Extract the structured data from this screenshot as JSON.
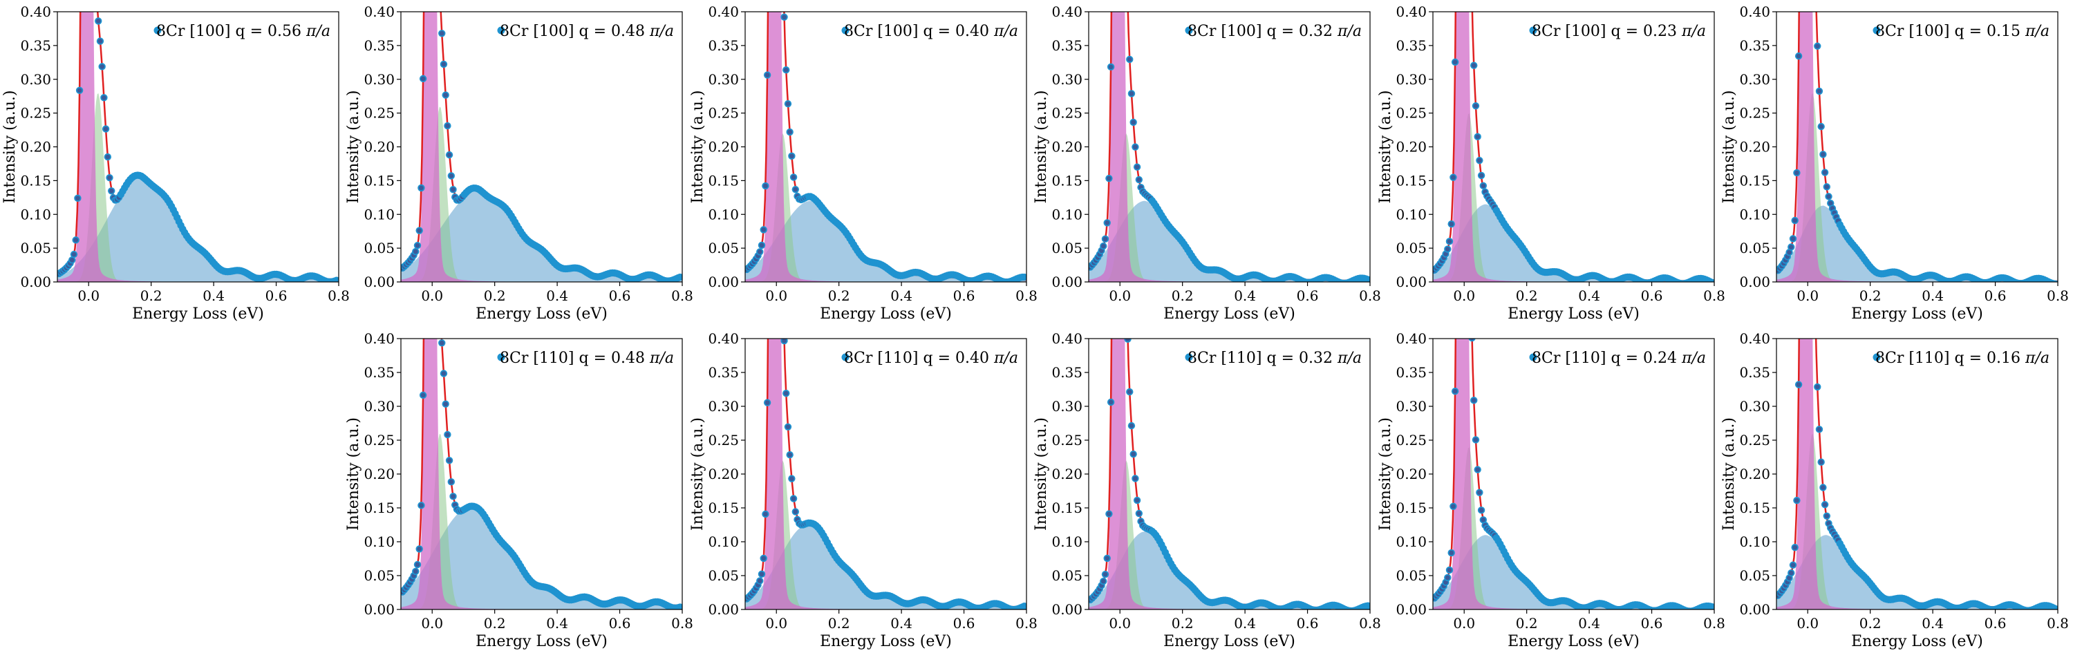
{
  "chart_data": [
    {
      "type": "scatter",
      "q": 0.56,
      "series": [
        {
          "name": "8Cr [100] q = 0.56 π/a",
          "label_main": "8Cr [100] q = 0.56 ",
          "label_italic": "π/a"
        }
      ],
      "xlabel": "Energy Loss (eV)",
      "ylabel": "Intensity (a.u.)",
      "xlim": [
        -0.1,
        0.8
      ],
      "ylim": [
        0,
        0.4
      ],
      "xticks": [
        "0.0",
        "0.2",
        "0.4",
        "0.6",
        "0.8"
      ],
      "yticks": [
        "0.00",
        "0.05",
        "0.10",
        "0.15",
        "0.20",
        "0.25",
        "0.30",
        "0.35",
        "0.40"
      ],
      "legend": "top-right",
      "grid": false,
      "components": {
        "zlp_center": -0.005,
        "zlp_width": 0.012,
        "zlp_amp": 1.6,
        "green_center": 0.03,
        "green_width": 0.02,
        "green_amp": 0.28,
        "blue_center": 0.17,
        "blue_width": 0.11,
        "blue_amp": 0.125,
        "tail_amp": 0.03,
        "tail_decay": 0.3,
        "lor_amp": 0.0027,
        "lor_gamma": 0.02
      }
    },
    {
      "type": "scatter",
      "q": 0.48,
      "series": [
        {
          "name": "8Cr [100] q = 0.48 π/a",
          "label_main": "8Cr [100] q = 0.48 ",
          "label_italic": "π/a"
        }
      ],
      "xlabel": "Energy Loss (eV)",
      "ylabel": "Intensity (a.u.)",
      "xlim": [
        -0.1,
        0.8
      ],
      "ylim": [
        0,
        0.4
      ],
      "xticks": [
        "0.0",
        "0.2",
        "0.4",
        "0.6",
        "0.8"
      ],
      "yticks": [
        "0.00",
        "0.05",
        "0.10",
        "0.15",
        "0.20",
        "0.25",
        "0.30",
        "0.35",
        "0.40"
      ],
      "legend": "top-right",
      "grid": false,
      "components": {
        "zlp_center": -0.005,
        "zlp_width": 0.012,
        "zlp_amp": 1.6,
        "green_center": 0.025,
        "green_width": 0.02,
        "green_amp": 0.26,
        "blue_center": 0.15,
        "blue_width": 0.12,
        "blue_amp": 0.1,
        "tail_amp": 0.035,
        "tail_decay": 0.32,
        "lor_amp": 0.0027,
        "lor_gamma": 0.02
      }
    },
    {
      "type": "scatter",
      "q": 0.4,
      "series": [
        {
          "name": "8Cr [100] q = 0.40 π/a",
          "label_main": "8Cr [100] q = 0.40 ",
          "label_italic": "π/a"
        }
      ],
      "xlabel": "Energy Loss (eV)",
      "ylabel": "Intensity (a.u.)",
      "xlim": [
        -0.1,
        0.8
      ],
      "ylim": [
        0,
        0.4
      ],
      "xticks": [
        "0.0",
        "0.2",
        "0.4",
        "0.6",
        "0.8"
      ],
      "yticks": [
        "0.00",
        "0.05",
        "0.10",
        "0.15",
        "0.20",
        "0.25",
        "0.30",
        "0.35",
        "0.40"
      ],
      "legend": "top-right",
      "grid": false,
      "components": {
        "zlp_center": -0.005,
        "zlp_width": 0.012,
        "zlp_amp": 1.6,
        "green_center": 0.02,
        "green_width": 0.02,
        "green_amp": 0.22,
        "blue_center": 0.11,
        "blue_width": 0.1,
        "blue_amp": 0.09,
        "tail_amp": 0.03,
        "tail_decay": 0.3,
        "lor_amp": 0.0027,
        "lor_gamma": 0.02
      }
    },
    {
      "type": "scatter",
      "q": 0.32,
      "series": [
        {
          "name": "8Cr [100] q = 0.32 π/a",
          "label_main": "8Cr [100] q = 0.32 ",
          "label_italic": "π/a"
        }
      ],
      "xlabel": "Energy Loss (eV)",
      "ylabel": "Intensity (a.u.)",
      "xlim": [
        -0.1,
        0.8
      ],
      "ylim": [
        0,
        0.4
      ],
      "xticks": [
        "0.0",
        "0.2",
        "0.4",
        "0.6",
        "0.8"
      ],
      "yticks": [
        "0.00",
        "0.05",
        "0.10",
        "0.15",
        "0.20",
        "0.25",
        "0.30",
        "0.35",
        "0.40"
      ],
      "legend": "top-right",
      "grid": false,
      "components": {
        "zlp_center": -0.005,
        "zlp_width": 0.012,
        "zlp_amp": 1.6,
        "green_center": 0.02,
        "green_width": 0.02,
        "green_amp": 0.22,
        "blue_center": 0.08,
        "blue_width": 0.09,
        "blue_amp": 0.095,
        "tail_amp": 0.025,
        "tail_decay": 0.25,
        "lor_amp": 0.0027,
        "lor_gamma": 0.02
      }
    },
    {
      "type": "scatter",
      "q": 0.23,
      "series": [
        {
          "name": "8Cr [100] q = 0.23 π/a",
          "label_main": "8Cr [100] q = 0.23 ",
          "label_italic": "π/a"
        }
      ],
      "xlabel": "Energy Loss (eV)",
      "ylabel": "Intensity (a.u.)",
      "xlim": [
        -0.1,
        0.8
      ],
      "ylim": [
        0,
        0.4
      ],
      "xticks": [
        "0.0",
        "0.2",
        "0.4",
        "0.6",
        "0.8"
      ],
      "yticks": [
        "0.00",
        "0.05",
        "0.10",
        "0.15",
        "0.20",
        "0.25",
        "0.30",
        "0.35",
        "0.40"
      ],
      "legend": "top-right",
      "grid": false,
      "components": {
        "zlp_center": -0.005,
        "zlp_width": 0.012,
        "zlp_amp": 1.6,
        "green_center": 0.015,
        "green_width": 0.02,
        "green_amp": 0.25,
        "blue_center": 0.07,
        "blue_width": 0.08,
        "blue_amp": 0.09,
        "tail_amp": 0.025,
        "tail_decay": 0.22,
        "lor_amp": 0.0027,
        "lor_gamma": 0.02
      }
    },
    {
      "type": "scatter",
      "q": 0.15,
      "series": [
        {
          "name": "8Cr [100] q = 0.15 π/a",
          "label_main": "8Cr [100] q = 0.15 ",
          "label_italic": "π/a"
        }
      ],
      "xlabel": "Energy Loss (eV)",
      "ylabel": "Intensity (a.u.)",
      "xlim": [
        -0.1,
        0.8
      ],
      "ylim": [
        0,
        0.4
      ],
      "xticks": [
        "0.0",
        "0.2",
        "0.4",
        "0.6",
        "0.8"
      ],
      "yticks": [
        "0.00",
        "0.05",
        "0.10",
        "0.15",
        "0.20",
        "0.25",
        "0.30",
        "0.35",
        "0.40"
      ],
      "legend": "top-right",
      "grid": false,
      "components": {
        "zlp_center": -0.005,
        "zlp_width": 0.012,
        "zlp_amp": 1.6,
        "green_center": 0.015,
        "green_width": 0.02,
        "green_amp": 0.28,
        "blue_center": 0.05,
        "blue_width": 0.07,
        "blue_amp": 0.085,
        "tail_amp": 0.028,
        "tail_decay": 0.22,
        "lor_amp": 0.0027,
        "lor_gamma": 0.02
      }
    },
    {
      "type": "scatter",
      "q": 0.48,
      "series": [
        {
          "name": "8Cr [110] q = 0.48 π/a",
          "label_main": "8Cr [110] q = 0.48 ",
          "label_italic": "π/a"
        }
      ],
      "xlabel": "Energy Loss (eV)",
      "ylabel": "Intensity (a.u.)",
      "xlim": [
        -0.1,
        0.8
      ],
      "ylim": [
        0,
        0.4
      ],
      "xticks": [
        "0.0",
        "0.2",
        "0.4",
        "0.6",
        "0.8"
      ],
      "yticks": [
        "0.00",
        "0.05",
        "0.10",
        "0.15",
        "0.20",
        "0.25",
        "0.30",
        "0.35",
        "0.40"
      ],
      "legend": "top-right",
      "grid": false,
      "components": {
        "zlp_center": -0.005,
        "zlp_width": 0.012,
        "zlp_amp": 1.6,
        "green_center": 0.025,
        "green_width": 0.02,
        "green_amp": 0.26,
        "blue_center": 0.12,
        "blue_width": 0.11,
        "blue_amp": 0.11,
        "tail_amp": 0.04,
        "tail_decay": 0.35,
        "lor_amp": 0.0027,
        "lor_gamma": 0.02
      }
    },
    {
      "type": "scatter",
      "q": 0.4,
      "series": [
        {
          "name": "8Cr [110] q = 0.40 π/a",
          "label_main": "8Cr [110] q = 0.40 ",
          "label_italic": "π/a"
        }
      ],
      "xlabel": "Energy Loss (eV)",
      "ylabel": "Intensity (a.u.)",
      "xlim": [
        -0.1,
        0.8
      ],
      "ylim": [
        0,
        0.4
      ],
      "xticks": [
        "0.0",
        "0.2",
        "0.4",
        "0.6",
        "0.8"
      ],
      "yticks": [
        "0.00",
        "0.05",
        "0.10",
        "0.15",
        "0.20",
        "0.25",
        "0.30",
        "0.35",
        "0.40"
      ],
      "legend": "top-right",
      "grid": false,
      "components": {
        "zlp_center": -0.005,
        "zlp_width": 0.012,
        "zlp_amp": 1.6,
        "green_center": 0.02,
        "green_width": 0.02,
        "green_amp": 0.22,
        "blue_center": 0.1,
        "blue_width": 0.09,
        "blue_amp": 0.09,
        "tail_amp": 0.035,
        "tail_decay": 0.3,
        "lor_amp": 0.0027,
        "lor_gamma": 0.02
      }
    },
    {
      "type": "scatter",
      "q": 0.32,
      "series": [
        {
          "name": "8Cr [110] q = 0.32 π/a",
          "label_main": "8Cr [110] q = 0.32 ",
          "label_italic": "π/a"
        }
      ],
      "xlabel": "Energy Loss (eV)",
      "ylabel": "Intensity (a.u.)",
      "xlim": [
        -0.1,
        0.8
      ],
      "ylim": [
        0,
        0.4
      ],
      "xticks": [
        "0.0",
        "0.2",
        "0.4",
        "0.6",
        "0.8"
      ],
      "yticks": [
        "0.00",
        "0.05",
        "0.10",
        "0.15",
        "0.20",
        "0.25",
        "0.30",
        "0.35",
        "0.40"
      ],
      "legend": "top-right",
      "grid": false,
      "components": {
        "zlp_center": -0.005,
        "zlp_width": 0.012,
        "zlp_amp": 1.6,
        "green_center": 0.02,
        "green_width": 0.02,
        "green_amp": 0.22,
        "blue_center": 0.08,
        "blue_width": 0.08,
        "blue_amp": 0.09,
        "tail_amp": 0.025,
        "tail_decay": 0.25,
        "lor_amp": 0.0027,
        "lor_gamma": 0.02
      }
    },
    {
      "type": "scatter",
      "q": 0.24,
      "series": [
        {
          "name": "8Cr [110] q = 0.24 π/a",
          "label_main": "8Cr [110] q = 0.24 ",
          "label_italic": "π/a"
        }
      ],
      "xlabel": "Energy Loss (eV)",
      "ylabel": "Intensity (a.u.)",
      "xlim": [
        -0.1,
        0.8
      ],
      "ylim": [
        0,
        0.4
      ],
      "xticks": [
        "0.0",
        "0.2",
        "0.4",
        "0.6",
        "0.8"
      ],
      "yticks": [
        "0.00",
        "0.05",
        "0.10",
        "0.15",
        "0.20",
        "0.25",
        "0.30",
        "0.35",
        "0.40"
      ],
      "legend": "top-right",
      "grid": false,
      "components": {
        "zlp_center": -0.005,
        "zlp_width": 0.012,
        "zlp_amp": 1.6,
        "green_center": 0.015,
        "green_width": 0.02,
        "green_amp": 0.24,
        "blue_center": 0.07,
        "blue_width": 0.08,
        "blue_amp": 0.085,
        "tail_amp": 0.025,
        "tail_decay": 0.22,
        "lor_amp": 0.0027,
        "lor_gamma": 0.02
      }
    },
    {
      "type": "scatter",
      "q": 0.16,
      "series": [
        {
          "name": "8Cr [110] q = 0.16 π/a",
          "label_main": "8Cr [110] q = 0.16 ",
          "label_italic": "π/a"
        }
      ],
      "xlabel": "Energy Loss (eV)",
      "ylabel": "Intensity (a.u.)",
      "xlim": [
        -0.1,
        0.8
      ],
      "ylim": [
        0,
        0.4
      ],
      "xticks": [
        "0.0",
        "0.2",
        "0.4",
        "0.6",
        "0.8"
      ],
      "yticks": [
        "0.00",
        "0.05",
        "0.10",
        "0.15",
        "0.20",
        "0.25",
        "0.30",
        "0.35",
        "0.40"
      ],
      "legend": "top-right",
      "grid": false,
      "components": {
        "zlp_center": -0.005,
        "zlp_width": 0.012,
        "zlp_amp": 1.6,
        "green_center": 0.015,
        "green_width": 0.02,
        "green_amp": 0.26,
        "blue_center": 0.06,
        "blue_width": 0.08,
        "blue_amp": 0.08,
        "tail_amp": 0.03,
        "tail_decay": 0.25,
        "lor_amp": 0.0027,
        "lor_gamma": 0.02
      }
    }
  ],
  "colors": {
    "data_points": "#1f93d0",
    "data_points_inner": "#3a5a9a",
    "fit_line": "#e02020",
    "zlp_fill": "#d16cc8",
    "zlp_fill_alt": "#e6a1d8",
    "green_fill": "#8fc98f",
    "blue_fill": "#7fb4d8",
    "axes": "#000000"
  }
}
